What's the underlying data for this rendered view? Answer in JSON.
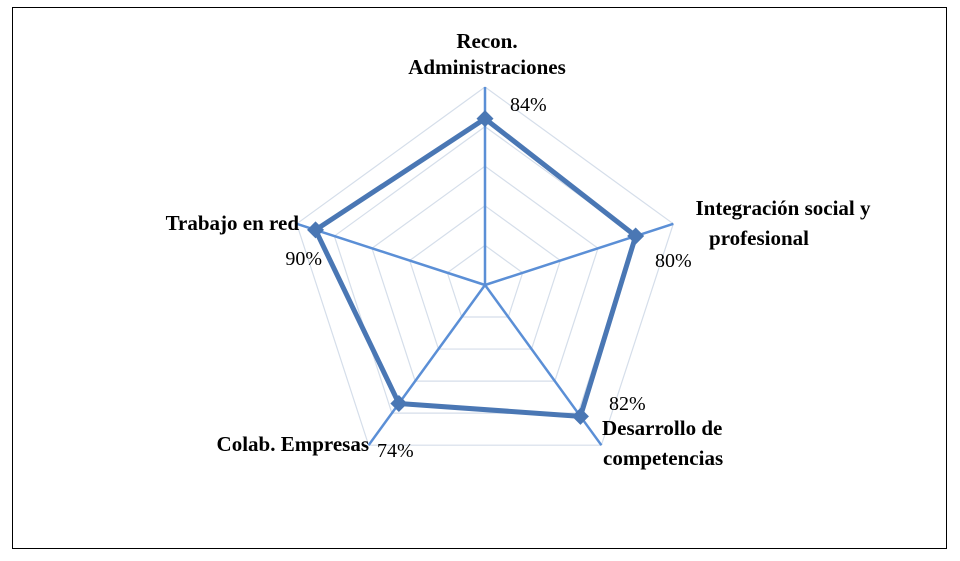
{
  "chart_data": {
    "type": "radar",
    "categories": [
      [
        "Recon.",
        "Administraciones"
      ],
      [
        "Integración social y",
        "profesional"
      ],
      [
        "Desarrollo de",
        "competencias"
      ],
      [
        "Colab. Empresas"
      ],
      [
        "Trabajo en red"
      ]
    ],
    "values": [
      84,
      80,
      82,
      74,
      90
    ],
    "value_labels": [
      "84%",
      "80%",
      "82%",
      "74%",
      "90%"
    ],
    "rmax": 100,
    "grid_levels": 5,
    "colors": {
      "series": "#4a77b4",
      "axis": "#5b8fd6",
      "grid": "#d5deea"
    }
  }
}
